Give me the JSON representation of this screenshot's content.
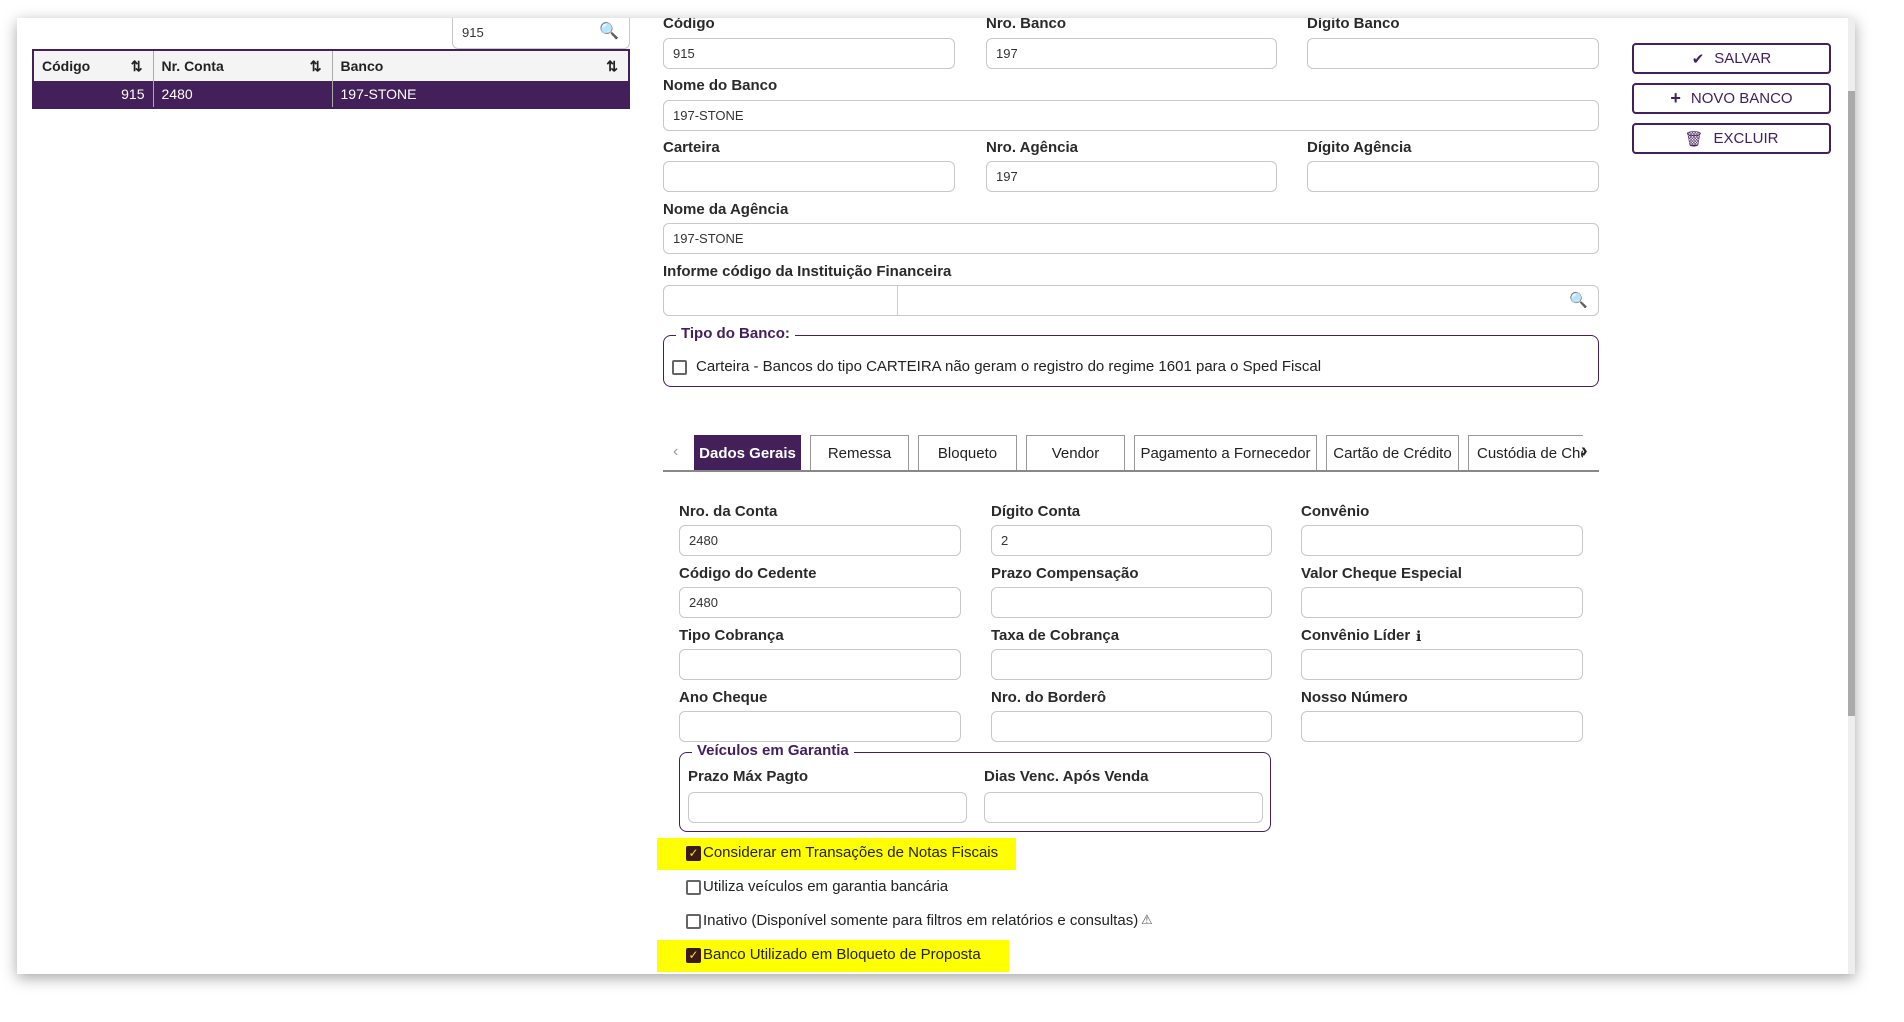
{
  "list": {
    "search_value": "915",
    "columns": [
      "Código",
      "Nr. Conta",
      "Banco"
    ],
    "rows": [
      {
        "codigo": "915",
        "nr_conta": "2480",
        "banco": "197-STONE"
      }
    ]
  },
  "actions": {
    "save": "SALVAR",
    "new": "NOVO BANCO",
    "delete": "EXCLUIR"
  },
  "form": {
    "codigo": {
      "label": "Código",
      "value": "915"
    },
    "nro_banco": {
      "label": "Nro. Banco",
      "value": "197"
    },
    "digito_banco": {
      "label": "Dígito Banco",
      "value": ""
    },
    "nome_banco": {
      "label": "Nome do Banco",
      "value": "197-STONE"
    },
    "carteira": {
      "label": "Carteira",
      "value": ""
    },
    "nro_agencia": {
      "label": "Nro. Agência",
      "value": "197"
    },
    "digito_agencia": {
      "label": "Dígito Agência",
      "value": ""
    },
    "nome_agencia": {
      "label": "Nome da Agência",
      "value": "197-STONE"
    },
    "instituicao": {
      "label": "Informe código da Instituição Financeira",
      "value": ""
    },
    "tipo_banco": {
      "legend": "Tipo do Banco:",
      "carteira_label": "Carteira - Bancos do tipo CARTEIRA não geram o registro do regime 1601 para o Sped Fiscal",
      "carteira_checked": false
    }
  },
  "tabs": [
    "Dados Gerais",
    "Remessa",
    "Bloqueto",
    "Vendor",
    "Pagamento a Fornecedor",
    "Cartão de Crédito",
    "Custódia de Cheques"
  ],
  "active_tab": "Dados Gerais",
  "dados_gerais": {
    "fields": [
      {
        "label": "Nro. da Conta",
        "value": "2480"
      },
      {
        "label": "Dígito Conta",
        "value": "2"
      },
      {
        "label": "Convênio",
        "value": ""
      },
      {
        "label": "Código do Cedente",
        "value": "2480"
      },
      {
        "label": "Prazo Compensação",
        "value": ""
      },
      {
        "label": "Valor Cheque Especial",
        "value": ""
      },
      {
        "label": "Tipo Cobrança",
        "value": ""
      },
      {
        "label": "Taxa de Cobrança",
        "value": ""
      },
      {
        "label": "Convênio Líder",
        "value": ""
      },
      {
        "label": "Ano Cheque",
        "value": ""
      },
      {
        "label": "Nro. do Borderô",
        "value": ""
      },
      {
        "label": "Nosso Número",
        "value": ""
      }
    ],
    "veiculos": {
      "legend": "Veículos em Garantia",
      "prazo_label": "Prazo Máx Pagto",
      "prazo_value": "",
      "dias_label": "Dias Venc. Após Venda",
      "dias_value": ""
    },
    "checkboxes": [
      {
        "label": "Considerar em Transações de Notas Fiscais",
        "checked": true,
        "highlighted": true
      },
      {
        "label": "Utiliza veículos em garantia bancária",
        "checked": false
      },
      {
        "label": "Inativo (Disponível somente para filtros em relatórios e consultas)",
        "checked": false
      },
      {
        "label": "Banco Utilizado em Bloqueto de Proposta",
        "checked": true,
        "highlighted": true
      }
    ]
  },
  "colors": {
    "accent": "#44205a",
    "highlight": "#ffff00"
  }
}
